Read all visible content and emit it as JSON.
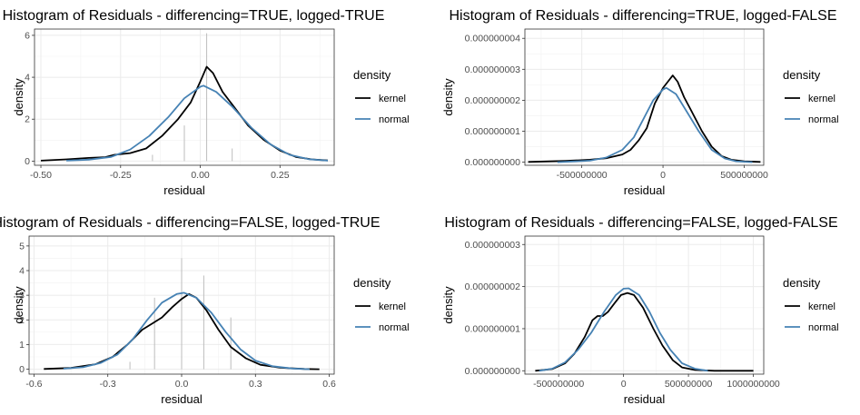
{
  "chart_data": [
    {
      "type": "histogram",
      "title": "Histogram of Residuals - differencing=TRUE, logged-TRUE",
      "xlabel": "residual",
      "ylabel": "density",
      "xlim": [
        -0.52,
        0.42
      ],
      "ylim": [
        -0.2,
        6.3
      ],
      "xticks": [
        -0.5,
        -0.25,
        0,
        0.25
      ],
      "xtick_labels": [
        "-0.50",
        "-0.25",
        "0.00",
        "0.25"
      ],
      "yticks": [
        0,
        2,
        4,
        6
      ],
      "ytick_labels": [
        "0",
        "2",
        "4",
        "6"
      ],
      "bars": [
        {
          "x": -0.15,
          "y": 0.3
        },
        {
          "x": -0.05,
          "y": 1.7
        },
        {
          "x": 0.02,
          "y": 6.1
        },
        {
          "x": 0.1,
          "y": 0.6
        }
      ],
      "legend": {
        "title": "density",
        "position": "right"
      },
      "series": [
        {
          "name": "kernel",
          "color": "#000000",
          "points": [
            [
              -0.5,
              0.02
            ],
            [
              -0.42,
              0.08
            ],
            [
              -0.35,
              0.15
            ],
            [
              -0.3,
              0.18
            ],
            [
              -0.27,
              0.3
            ],
            [
              -0.22,
              0.38
            ],
            [
              -0.17,
              0.6
            ],
            [
              -0.12,
              1.2
            ],
            [
              -0.07,
              2.0
            ],
            [
              -0.03,
              2.8
            ],
            [
              0.0,
              3.8
            ],
            [
              0.02,
              4.5
            ],
            [
              0.04,
              4.2
            ],
            [
              0.07,
              3.3
            ],
            [
              0.11,
              2.5
            ],
            [
              0.15,
              1.7
            ],
            [
              0.2,
              1.0
            ],
            [
              0.25,
              0.5
            ],
            [
              0.3,
              0.2
            ],
            [
              0.35,
              0.08
            ],
            [
              0.4,
              0.03
            ]
          ]
        },
        {
          "name": "normal",
          "color": "#4682b4",
          "points": [
            [
              -0.42,
              0.02
            ],
            [
              -0.35,
              0.07
            ],
            [
              -0.28,
              0.2
            ],
            [
              -0.22,
              0.55
            ],
            [
              -0.16,
              1.2
            ],
            [
              -0.1,
              2.1
            ],
            [
              -0.05,
              3.0
            ],
            [
              0.0,
              3.55
            ],
            [
              0.01,
              3.6
            ],
            [
              0.05,
              3.3
            ],
            [
              0.1,
              2.6
            ],
            [
              0.16,
              1.6
            ],
            [
              0.22,
              0.8
            ],
            [
              0.28,
              0.3
            ],
            [
              0.34,
              0.09
            ],
            [
              0.4,
              0.02
            ]
          ]
        }
      ]
    },
    {
      "type": "histogram",
      "title": "Histogram of Residuals - differencing=TRUE, logged-FALSE",
      "xlabel": "residual",
      "ylabel": "density",
      "xlim": [
        -850000000,
        620000000
      ],
      "ylim": [
        -1e-10,
        4.3e-09
      ],
      "xticks": [
        -500000000,
        0,
        500000000
      ],
      "xtick_labels": [
        "-500000000",
        "0",
        "500000000"
      ],
      "yticks": [
        0,
        1e-09,
        2e-09,
        3e-09,
        4e-09
      ],
      "ytick_labels": [
        "0.000000000",
        "0.000000001",
        "0.000000002",
        "0.000000003",
        "0.000000004"
      ],
      "bars": [],
      "legend": {
        "title": "density",
        "position": "right"
      },
      "series": [
        {
          "name": "kernel",
          "color": "#000000",
          "points": [
            [
              -830000000,
              1e-11
            ],
            [
              -600000000,
              4e-11
            ],
            [
              -450000000,
              8e-11
            ],
            [
              -350000000,
              1.3e-10
            ],
            [
              -250000000,
              2.5e-10
            ],
            [
              -200000000,
              4e-10
            ],
            [
              -150000000,
              7e-10
            ],
            [
              -100000000,
              1.1e-09
            ],
            [
              -50000000,
              1.9e-09
            ],
            [
              0,
              2.4e-09
            ],
            [
              30000000,
              2.6e-09
            ],
            [
              60000000,
              2.8e-09
            ],
            [
              90000000,
              2.6e-09
            ],
            [
              130000000,
              2.1e-09
            ],
            [
              180000000,
              1.6e-09
            ],
            [
              240000000,
              1e-09
            ],
            [
              300000000,
              5e-10
            ],
            [
              360000000,
              2e-10
            ],
            [
              420000000,
              8e-11
            ],
            [
              500000000,
              3e-11
            ],
            [
              600000000,
              1e-11
            ]
          ]
        },
        {
          "name": "normal",
          "color": "#4682b4",
          "points": [
            [
              -650000000,
              0.0
            ],
            [
              -450000000,
              5e-11
            ],
            [
              -350000000,
              1.5e-10
            ],
            [
              -250000000,
              4e-10
            ],
            [
              -180000000,
              8e-10
            ],
            [
              -120000000,
              1.4e-09
            ],
            [
              -60000000,
              2e-09
            ],
            [
              0,
              2.35e-09
            ],
            [
              20000000,
              2.4e-09
            ],
            [
              80000000,
              2.2e-09
            ],
            [
              150000000,
              1.6e-09
            ],
            [
              220000000,
              1e-09
            ],
            [
              300000000,
              4e-10
            ],
            [
              380000000,
              1.2e-10
            ],
            [
              450000000,
              3e-11
            ],
            [
              550000000,
              0.0
            ]
          ]
        }
      ]
    },
    {
      "type": "histogram",
      "title": "Histogram of Residuals - differencing=FALSE, logged-TRUE",
      "xlabel": "residual",
      "ylabel": "density",
      "xlim": [
        -0.62,
        0.62
      ],
      "ylim": [
        -0.2,
        5.4
      ],
      "xticks": [
        -0.6,
        -0.3,
        0,
        0.3,
        0.6
      ],
      "xtick_labels": [
        "-0.6",
        "-0.3",
        "0.0",
        "0.3",
        "0.6"
      ],
      "yticks": [
        0,
        1,
        2,
        3,
        4,
        5
      ],
      "ytick_labels": [
        "0",
        "1",
        "2",
        "3",
        "4",
        "5"
      ],
      "bars": [
        {
          "x": -0.21,
          "y": 0.3
        },
        {
          "x": -0.11,
          "y": 2.9
        },
        {
          "x": 0.0,
          "y": 4.5
        },
        {
          "x": 0.09,
          "y": 3.8
        },
        {
          "x": 0.2,
          "y": 2.1
        }
      ],
      "legend": {
        "title": "density",
        "position": "right"
      },
      "series": [
        {
          "name": "kernel",
          "color": "#000000",
          "points": [
            [
              -0.56,
              0.01
            ],
            [
              -0.45,
              0.05
            ],
            [
              -0.35,
              0.2
            ],
            [
              -0.28,
              0.5
            ],
            [
              -0.22,
              1.0
            ],
            [
              -0.16,
              1.6
            ],
            [
              -0.12,
              1.85
            ],
            [
              -0.08,
              2.1
            ],
            [
              -0.04,
              2.5
            ],
            [
              0.0,
              2.85
            ],
            [
              0.03,
              3.05
            ],
            [
              0.06,
              2.9
            ],
            [
              0.1,
              2.4
            ],
            [
              0.15,
              1.6
            ],
            [
              0.2,
              0.9
            ],
            [
              0.26,
              0.45
            ],
            [
              0.32,
              0.18
            ],
            [
              0.4,
              0.06
            ],
            [
              0.5,
              0.01
            ],
            [
              0.56,
              0.0
            ]
          ]
        },
        {
          "name": "normal",
          "color": "#4682b4",
          "points": [
            [
              -0.48,
              0.02
            ],
            [
              -0.4,
              0.08
            ],
            [
              -0.33,
              0.25
            ],
            [
              -0.26,
              0.6
            ],
            [
              -0.2,
              1.2
            ],
            [
              -0.14,
              2.0
            ],
            [
              -0.08,
              2.7
            ],
            [
              -0.02,
              3.05
            ],
            [
              0.01,
              3.1
            ],
            [
              0.06,
              2.9
            ],
            [
              0.12,
              2.3
            ],
            [
              0.18,
              1.5
            ],
            [
              0.24,
              0.8
            ],
            [
              0.3,
              0.35
            ],
            [
              0.37,
              0.12
            ],
            [
              0.45,
              0.03
            ],
            [
              0.52,
              0.0
            ]
          ]
        }
      ]
    },
    {
      "type": "histogram",
      "title": "Histogram of Residuals - differencing=FALSE, logged-FALSE",
      "xlabel": "residual",
      "ylabel": "density",
      "xlim": [
        -760000000,
        1080000000
      ],
      "ylim": [
        -8e-11,
        3.2e-09
      ],
      "xticks": [
        -500000000,
        0,
        500000000,
        1000000000
      ],
      "xtick_labels": [
        "-500000000",
        "0",
        "500000000",
        "1000000000"
      ],
      "yticks": [
        0,
        1e-09,
        2e-09,
        3e-09
      ],
      "ytick_labels": [
        "0.000000000",
        "0.000000001",
        "0.000000002",
        "0.000000003"
      ],
      "bars": [],
      "legend": {
        "title": "density",
        "position": "right"
      },
      "series": [
        {
          "name": "kernel",
          "color": "#000000",
          "points": [
            [
              -680000000,
              0.0
            ],
            [
              -550000000,
              4e-11
            ],
            [
              -450000000,
              1.8e-10
            ],
            [
              -380000000,
              4e-10
            ],
            [
              -300000000,
              8e-10
            ],
            [
              -240000000,
              1.2e-09
            ],
            [
              -200000000,
              1.3e-09
            ],
            [
              -160000000,
              1.3e-09
            ],
            [
              -120000000,
              1.4e-09
            ],
            [
              -70000000,
              1.6e-09
            ],
            [
              -20000000,
              1.8e-09
            ],
            [
              30000000,
              1.85e-09
            ],
            [
              80000000,
              1.8e-09
            ],
            [
              150000000,
              1.5e-09
            ],
            [
              230000000,
              1e-09
            ],
            [
              300000000,
              6e-10
            ],
            [
              380000000,
              2.5e-10
            ],
            [
              450000000,
              8e-11
            ],
            [
              550000000,
              2e-11
            ],
            [
              700000000,
              0.0
            ],
            [
              1000000000,
              0.0
            ]
          ]
        },
        {
          "name": "normal",
          "color": "#4682b4",
          "points": [
            [
              -650000000,
              0.0
            ],
            [
              -550000000,
              5e-11
            ],
            [
              -450000000,
              2e-10
            ],
            [
              -350000000,
              5e-10
            ],
            [
              -250000000,
              9e-10
            ],
            [
              -150000000,
              1.4e-09
            ],
            [
              -60000000,
              1.8e-09
            ],
            [
              0,
              1.95e-09
            ],
            [
              40000000,
              1.96e-09
            ],
            [
              120000000,
              1.8e-09
            ],
            [
              200000000,
              1.4e-09
            ],
            [
              280000000,
              9e-10
            ],
            [
              360000000,
              5e-10
            ],
            [
              450000000,
              1.8e-10
            ],
            [
              550000000,
              5e-11
            ],
            [
              650000000,
              0.0
            ]
          ]
        }
      ]
    }
  ]
}
